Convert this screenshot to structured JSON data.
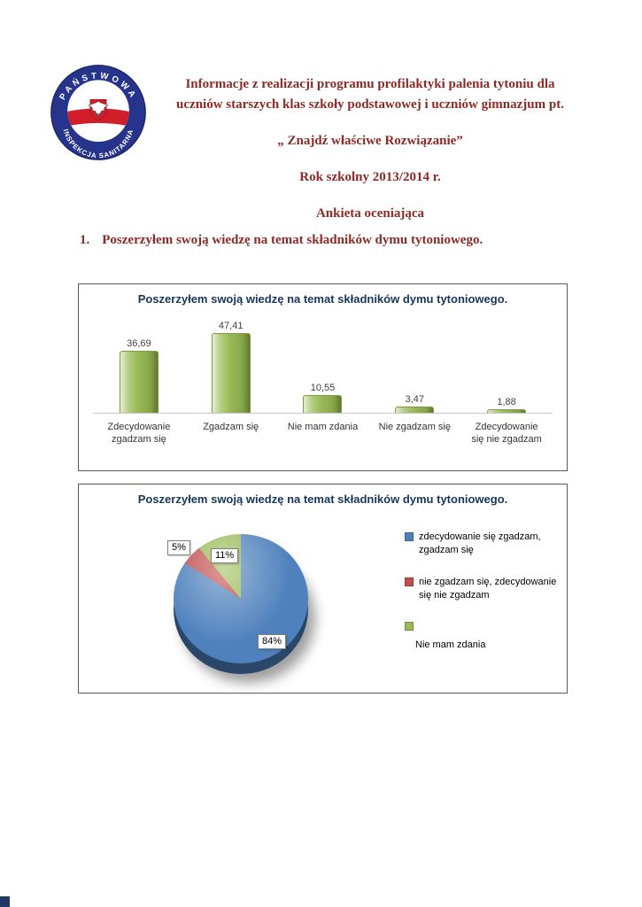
{
  "logo": {
    "top_text": "PAŃSTWOWA",
    "bottom_text": "INSPEKCJA SANITARNA"
  },
  "header": {
    "title_line1": "Informacje z realizacji programu profilaktyki palenia tytoniu dla",
    "title_line2": "uczniów starszych klas szkoły podstawowej i uczniów gimnazjum pt.",
    "subtitle": "„ Znajdź właściwe Rozwiązanie”",
    "school_year": "Rok szkolny 2013/2014 r.",
    "survey_type": "Ankieta oceniająca"
  },
  "question": {
    "number": "1.",
    "text": "Poszerzyłem swoją wiedzę na temat składników dymu tytoniowego."
  },
  "colors": {
    "heading_red": "#8e2a25",
    "chart_title_navy": "#17365d",
    "bar_green": "#9bbb59",
    "pie_blue": "#4f81bd",
    "pie_red": "#c0504d",
    "pie_green": "#9bbb59"
  },
  "chart_data": [
    {
      "type": "bar",
      "title": "Poszerzyłem swoją wiedzę na temat składników dymu tytoniowego.",
      "categories": [
        "Zdecydowanie zgadzam się",
        "Zgadzam się",
        "Nie mam zdania",
        "Nie zgadzam się",
        "Zdecydowanie się nie zgadzam"
      ],
      "values": [
        36.69,
        47.41,
        10.55,
        3.47,
        1.88
      ],
      "value_labels": [
        "36,69",
        "47,41",
        "10,55",
        "3,47",
        "1,88"
      ],
      "xlabel": "",
      "ylabel": "",
      "ylim": [
        0,
        50
      ],
      "grid": false,
      "legend": "none",
      "bar_color": "#9bbb59"
    },
    {
      "type": "pie",
      "title": "Poszerzyłem swoją wiedzę na temat składników dymu tytoniowego.",
      "slices": [
        {
          "label": "zdecydowanie się zgadzam, zgadzam się",
          "value": 84,
          "pct_label": "84%",
          "color": "#4f81bd"
        },
        {
          "label": "nie zgadzam się, zdecydowanie się nie zgadzam",
          "value": 5,
          "pct_label": "5%",
          "color": "#c0504d"
        },
        {
          "label": "Nie mam zdania",
          "value": 11,
          "pct_label": "11%",
          "color": "#9bbb59"
        }
      ],
      "legend_position": "right",
      "start_angle_deg": 0,
      "direction": "clockwise"
    }
  ]
}
